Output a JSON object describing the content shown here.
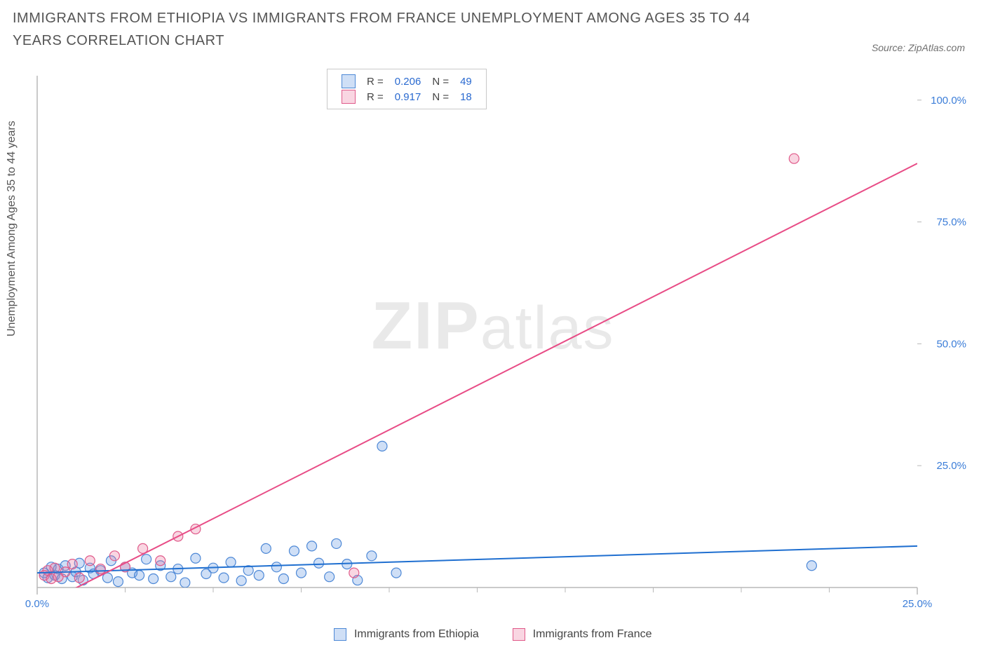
{
  "title": "IMMIGRANTS FROM ETHIOPIA VS IMMIGRANTS FROM FRANCE UNEMPLOYMENT AMONG AGES 35 TO 44 YEARS CORRELATION CHART",
  "source_label": "Source: ZipAtlas.com",
  "watermark_zip": "ZIP",
  "watermark_atlas": "atlas",
  "y_axis_label": "Unemployment Among Ages 35 to 44 years",
  "chart": {
    "type": "scatter",
    "x_domain": [
      0,
      25
    ],
    "y_domain": [
      0,
      105
    ],
    "x_ticks_major": [
      0,
      25
    ],
    "x_ticks_minor_step": 2.5,
    "x_tick_labels": {
      "0": "0.0%",
      "25": "25.0%"
    },
    "y_ticks": [
      25,
      50,
      75,
      100
    ],
    "y_tick_labels": {
      "25": "25.0%",
      "50": "50.0%",
      "75": "75.0%",
      "100": "100.0%"
    },
    "plot_bg": "#ffffff",
    "axis_color": "#b8b8b8",
    "tick_color": "#b8b8b8",
    "label_color": "#3b7dd8",
    "marker_radius": 7,
    "marker_stroke_width": 1.2,
    "line_width": 2,
    "series": [
      {
        "name": "Immigrants from Ethiopia",
        "fill": "rgba(95,150,225,0.30)",
        "stroke": "#4d88d6",
        "line_color": "#1f6fd0",
        "trend": {
          "x1": 0,
          "y1": 3.0,
          "x2": 25,
          "y2": 8.5
        },
        "R": "0.206",
        "N": "49",
        "points": [
          [
            0.2,
            3.0
          ],
          [
            0.3,
            2.0
          ],
          [
            0.4,
            4.2
          ],
          [
            0.5,
            2.5
          ],
          [
            0.6,
            3.8
          ],
          [
            0.7,
            1.8
          ],
          [
            0.8,
            4.5
          ],
          [
            1.0,
            2.2
          ],
          [
            1.1,
            3.2
          ],
          [
            1.2,
            5.0
          ],
          [
            1.3,
            1.5
          ],
          [
            1.5,
            4.0
          ],
          [
            1.6,
            2.8
          ],
          [
            1.8,
            3.5
          ],
          [
            2.0,
            2.0
          ],
          [
            2.1,
            5.5
          ],
          [
            2.3,
            1.2
          ],
          [
            2.5,
            4.2
          ],
          [
            2.7,
            3.0
          ],
          [
            2.9,
            2.5
          ],
          [
            3.1,
            5.8
          ],
          [
            3.3,
            1.8
          ],
          [
            3.5,
            4.5
          ],
          [
            3.8,
            2.2
          ],
          [
            4.0,
            3.8
          ],
          [
            4.2,
            1.0
          ],
          [
            4.5,
            6.0
          ],
          [
            4.8,
            2.8
          ],
          [
            5.0,
            4.0
          ],
          [
            5.3,
            2.0
          ],
          [
            5.5,
            5.2
          ],
          [
            5.8,
            1.4
          ],
          [
            6.0,
            3.5
          ],
          [
            6.3,
            2.5
          ],
          [
            6.5,
            8.0
          ],
          [
            6.8,
            4.2
          ],
          [
            7.0,
            1.8
          ],
          [
            7.3,
            7.5
          ],
          [
            7.5,
            3.0
          ],
          [
            7.8,
            8.5
          ],
          [
            8.0,
            5.0
          ],
          [
            8.3,
            2.2
          ],
          [
            8.5,
            9.0
          ],
          [
            8.8,
            4.8
          ],
          [
            9.1,
            1.5
          ],
          [
            9.5,
            6.5
          ],
          [
            9.8,
            29.0
          ],
          [
            10.2,
            3.0
          ],
          [
            22.0,
            4.5
          ]
        ]
      },
      {
        "name": "Immigrants from France",
        "fill": "rgba(235,120,160,0.30)",
        "stroke": "#e05a8a",
        "line_color": "#e84c86",
        "trend": {
          "x1": 0.3,
          "y1": -3.0,
          "x2": 25,
          "y2": 87.0
        },
        "R": "0.917",
        "N": "18",
        "points": [
          [
            0.2,
            2.5
          ],
          [
            0.3,
            3.5
          ],
          [
            0.4,
            1.8
          ],
          [
            0.5,
            4.0
          ],
          [
            0.6,
            2.2
          ],
          [
            0.8,
            3.2
          ],
          [
            1.0,
            4.8
          ],
          [
            1.2,
            2.0
          ],
          [
            1.5,
            5.5
          ],
          [
            1.8,
            3.8
          ],
          [
            2.2,
            6.5
          ],
          [
            2.5,
            4.2
          ],
          [
            3.0,
            8.0
          ],
          [
            3.5,
            5.5
          ],
          [
            4.0,
            10.5
          ],
          [
            4.5,
            12.0
          ],
          [
            9.0,
            3.0
          ],
          [
            21.5,
            88.0
          ]
        ]
      }
    ]
  },
  "legend_stats_headers": {
    "R": "R =",
    "N": "N ="
  },
  "bottom_legend": {
    "item1_label": "Immigrants from Ethiopia",
    "item2_label": "Immigrants from France"
  }
}
